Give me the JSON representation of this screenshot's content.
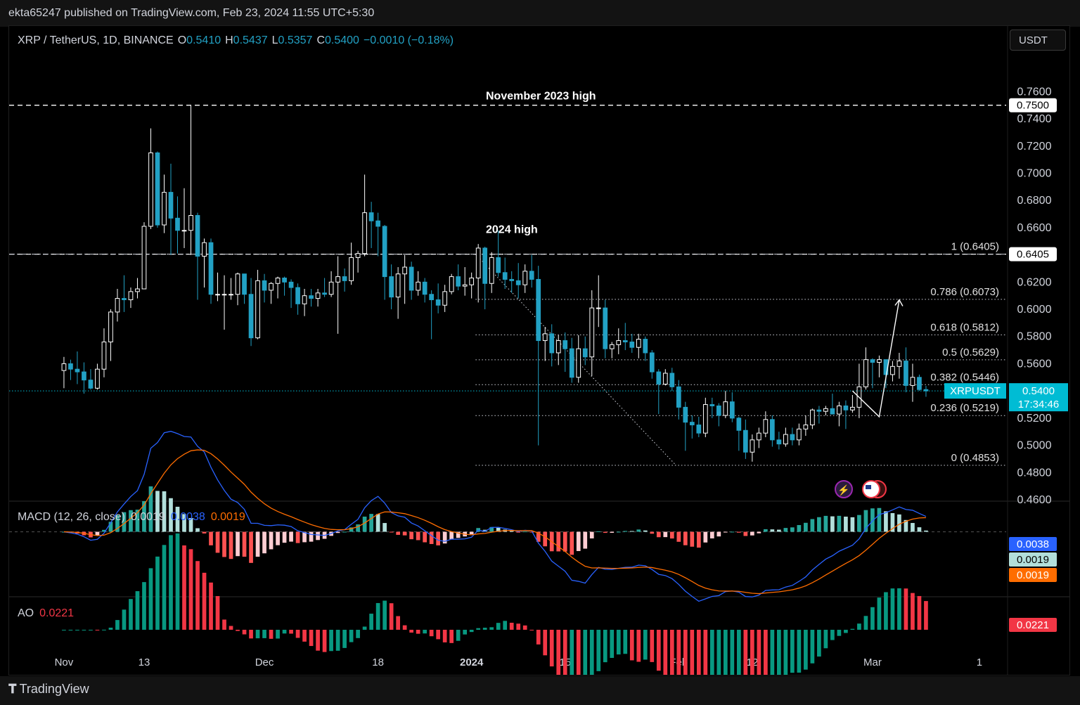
{
  "header": {
    "published": "ekta65247 published on TradingView.com, Feb 23, 2024 11:55 UTC+5:30"
  },
  "toolbar": {
    "currency": "USDT"
  },
  "branding": {
    "name": "TradingView"
  },
  "legend": {
    "symbol": "XRP / TetherUS, 1D, BINANCE",
    "o_label": "O",
    "o": "0.5410",
    "h_label": "H",
    "h": "0.5437",
    "l_label": "L",
    "l": "0.5357",
    "c_label": "C",
    "c": "0.5400",
    "change": "−0.0010 (−0.18%)"
  },
  "colors": {
    "up": "#ffffff",
    "down": "#22a1c4",
    "background": "#000000",
    "macd_line": "#2962ff",
    "signal_line": "#ff6d00",
    "hist_pos_strong": "#26a69a",
    "hist_pos_weak": "#b2dfdb",
    "hist_neg_strong": "#ff5252",
    "hist_neg_weak": "#ffcdd2",
    "ao_up": "#089981",
    "ao_down": "#f23645",
    "price_badge": "#00bcd4"
  },
  "chart_data": {
    "type": "candlestick",
    "symbol": "XRPUSDT",
    "ylim": [
      0.46,
      0.77
    ],
    "y_ticks": [
      "0.7600",
      "0.7400",
      "0.7200",
      "0.7000",
      "0.6800",
      "0.6600",
      "0.6400",
      "0.6200",
      "0.6000",
      "0.5800",
      "0.5600",
      "0.5400",
      "0.5200",
      "0.5000",
      "0.4800",
      "0.4600"
    ],
    "y_tick_values": [
      0.76,
      0.74,
      0.72,
      0.7,
      0.68,
      0.66,
      0.64,
      0.62,
      0.6,
      0.58,
      0.56,
      0.54,
      0.52,
      0.5,
      0.48,
      0.46
    ],
    "x_ticks": [
      {
        "label": "Nov",
        "day": 0
      },
      {
        "label": "13",
        "day": 12
      },
      {
        "label": "Dec",
        "day": 30
      },
      {
        "label": "18",
        "day": 47
      },
      {
        "label": "2024",
        "day": 61
      },
      {
        "label": "15",
        "day": 75
      },
      {
        "label": "Feb",
        "day": 92
      },
      {
        "label": "12",
        "day": 103
      },
      {
        "label": "Mar",
        "day": 121
      },
      {
        "label": "1",
        "day": 137
      }
    ],
    "x_range_days": [
      -8.2,
      141
    ],
    "ohlc": [
      [
        0.555,
        0.565,
        0.542,
        0.56
      ],
      [
        0.56,
        0.563,
        0.548,
        0.556
      ],
      [
        0.556,
        0.569,
        0.545,
        0.554
      ],
      [
        0.554,
        0.561,
        0.538,
        0.548
      ],
      [
        0.548,
        0.556,
        0.541,
        0.542
      ],
      [
        0.542,
        0.56,
        0.541,
        0.556
      ],
      [
        0.556,
        0.586,
        0.55,
        0.576
      ],
      [
        0.576,
        0.6,
        0.562,
        0.598
      ],
      [
        0.598,
        0.615,
        0.591,
        0.608
      ],
      [
        0.608,
        0.625,
        0.598,
        0.607
      ],
      [
        0.607,
        0.616,
        0.601,
        0.613
      ],
      [
        0.613,
        0.623,
        0.608,
        0.615
      ],
      [
        0.615,
        0.664,
        0.615,
        0.661
      ],
      [
        0.661,
        0.733,
        0.659,
        0.715
      ],
      [
        0.715,
        0.716,
        0.66,
        0.662
      ],
      [
        0.662,
        0.699,
        0.656,
        0.686
      ],
      [
        0.686,
        0.707,
        0.64,
        0.667
      ],
      [
        0.667,
        0.683,
        0.641,
        0.658
      ],
      [
        0.658,
        0.689,
        0.645,
        0.658
      ],
      [
        0.658,
        0.75,
        0.64,
        0.669
      ],
      [
        0.669,
        0.671,
        0.607,
        0.639
      ],
      [
        0.639,
        0.652,
        0.616,
        0.649
      ],
      [
        0.649,
        0.652,
        0.604,
        0.611
      ],
      [
        0.611,
        0.627,
        0.606,
        0.611
      ],
      [
        0.611,
        0.625,
        0.585,
        0.611
      ],
      [
        0.611,
        0.623,
        0.607,
        0.611
      ],
      [
        0.611,
        0.627,
        0.603,
        0.626
      ],
      [
        0.626,
        0.626,
        0.604,
        0.611
      ],
      [
        0.611,
        0.623,
        0.573,
        0.579
      ],
      [
        0.579,
        0.629,
        0.578,
        0.621
      ],
      [
        0.621,
        0.626,
        0.605,
        0.614
      ],
      [
        0.614,
        0.62,
        0.604,
        0.619
      ],
      [
        0.619,
        0.624,
        0.608,
        0.623
      ],
      [
        0.623,
        0.624,
        0.61,
        0.62
      ],
      [
        0.62,
        0.622,
        0.601,
        0.616
      ],
      [
        0.616,
        0.619,
        0.596,
        0.604
      ],
      [
        0.604,
        0.615,
        0.595,
        0.61
      ],
      [
        0.61,
        0.615,
        0.602,
        0.608
      ],
      [
        0.608,
        0.615,
        0.602,
        0.612
      ],
      [
        0.612,
        0.623,
        0.609,
        0.611
      ],
      [
        0.611,
        0.628,
        0.609,
        0.62
      ],
      [
        0.62,
        0.639,
        0.582,
        0.624
      ],
      [
        0.624,
        0.63,
        0.613,
        0.621
      ],
      [
        0.621,
        0.649,
        0.618,
        0.638
      ],
      [
        0.638,
        0.643,
        0.627,
        0.641
      ],
      [
        0.641,
        0.699,
        0.639,
        0.671
      ],
      [
        0.671,
        0.679,
        0.645,
        0.665
      ],
      [
        0.665,
        0.671,
        0.639,
        0.661
      ],
      [
        0.661,
        0.662,
        0.607,
        0.624
      ],
      [
        0.624,
        0.633,
        0.6,
        0.609
      ],
      [
        0.609,
        0.631,
        0.593,
        0.626
      ],
      [
        0.626,
        0.64,
        0.604,
        0.631
      ],
      [
        0.631,
        0.635,
        0.607,
        0.614
      ],
      [
        0.614,
        0.628,
        0.61,
        0.62
      ],
      [
        0.62,
        0.623,
        0.605,
        0.611
      ],
      [
        0.611,
        0.614,
        0.578,
        0.607
      ],
      [
        0.607,
        0.619,
        0.597,
        0.603
      ],
      [
        0.603,
        0.618,
        0.598,
        0.613
      ],
      [
        0.613,
        0.626,
        0.611,
        0.624
      ],
      [
        0.624,
        0.633,
        0.614,
        0.617
      ],
      [
        0.617,
        0.631,
        0.61,
        0.618
      ],
      [
        0.618,
        0.627,
        0.608,
        0.623
      ],
      [
        0.623,
        0.648,
        0.605,
        0.645
      ],
      [
        0.645,
        0.646,
        0.6,
        0.619
      ],
      [
        0.619,
        0.642,
        0.612,
        0.638
      ],
      [
        0.638,
        0.658,
        0.624,
        0.627
      ],
      [
        0.627,
        0.638,
        0.615,
        0.622
      ],
      [
        0.622,
        0.628,
        0.612,
        0.621
      ],
      [
        0.621,
        0.634,
        0.608,
        0.618
      ],
      [
        0.618,
        0.633,
        0.612,
        0.628
      ],
      [
        0.628,
        0.64,
        0.616,
        0.622
      ],
      [
        0.622,
        0.632,
        0.5,
        0.577
      ],
      [
        0.577,
        0.587,
        0.562,
        0.582
      ],
      [
        0.582,
        0.589,
        0.558,
        0.568
      ],
      [
        0.568,
        0.581,
        0.559,
        0.577
      ],
      [
        0.577,
        0.583,
        0.554,
        0.571
      ],
      [
        0.571,
        0.579,
        0.546,
        0.55
      ],
      [
        0.55,
        0.581,
        0.546,
        0.571
      ],
      [
        0.571,
        0.58,
        0.559,
        0.565
      ],
      [
        0.565,
        0.614,
        0.551,
        0.601
      ],
      [
        0.601,
        0.625,
        0.587,
        0.601
      ],
      [
        0.601,
        0.607,
        0.564,
        0.571
      ],
      [
        0.571,
        0.576,
        0.564,
        0.574
      ],
      [
        0.574,
        0.586,
        0.567,
        0.577
      ],
      [
        0.577,
        0.59,
        0.57,
        0.576
      ],
      [
        0.576,
        0.582,
        0.568,
        0.572
      ],
      [
        0.572,
        0.582,
        0.564,
        0.578
      ],
      [
        0.578,
        0.58,
        0.562,
        0.568
      ],
      [
        0.568,
        0.57,
        0.549,
        0.554
      ],
      [
        0.554,
        0.556,
        0.523,
        0.545
      ],
      [
        0.545,
        0.556,
        0.544,
        0.553
      ],
      [
        0.553,
        0.557,
        0.54,
        0.543
      ],
      [
        0.543,
        0.548,
        0.519,
        0.528
      ],
      [
        0.528,
        0.532,
        0.496,
        0.517
      ],
      [
        0.517,
        0.522,
        0.505,
        0.515
      ],
      [
        0.515,
        0.521,
        0.506,
        0.509
      ],
      [
        0.509,
        0.535,
        0.506,
        0.53
      ],
      [
        0.53,
        0.535,
        0.52,
        0.529
      ],
      [
        0.529,
        0.531,
        0.514,
        0.522
      ],
      [
        0.522,
        0.54,
        0.52,
        0.532
      ],
      [
        0.532,
        0.539,
        0.517,
        0.52
      ],
      [
        0.52,
        0.521,
        0.496,
        0.511
      ],
      [
        0.511,
        0.519,
        0.49,
        0.495
      ],
      [
        0.495,
        0.508,
        0.488,
        0.504
      ],
      [
        0.504,
        0.513,
        0.498,
        0.509
      ],
      [
        0.509,
        0.525,
        0.506,
        0.519
      ],
      [
        0.519,
        0.522,
        0.499,
        0.504
      ],
      [
        0.504,
        0.51,
        0.497,
        0.501
      ],
      [
        0.501,
        0.513,
        0.499,
        0.508
      ],
      [
        0.508,
        0.513,
        0.5,
        0.504
      ],
      [
        0.504,
        0.516,
        0.5,
        0.512
      ],
      [
        0.512,
        0.522,
        0.507,
        0.515
      ],
      [
        0.515,
        0.527,
        0.512,
        0.526
      ],
      [
        0.526,
        0.529,
        0.516,
        0.525
      ],
      [
        0.525,
        0.529,
        0.522,
        0.527
      ],
      [
        0.527,
        0.538,
        0.523,
        0.523
      ],
      [
        0.523,
        0.532,
        0.514,
        0.529
      ],
      [
        0.529,
        0.533,
        0.512,
        0.526
      ],
      [
        0.526,
        0.537,
        0.524,
        0.528
      ],
      [
        0.528,
        0.56,
        0.52,
        0.543
      ],
      [
        0.543,
        0.572,
        0.541,
        0.563
      ],
      [
        0.563,
        0.564,
        0.542,
        0.561
      ],
      [
        0.561,
        0.566,
        0.55,
        0.563
      ],
      [
        0.563,
        0.563,
        0.542,
        0.552
      ],
      [
        0.552,
        0.562,
        0.547,
        0.558
      ],
      [
        0.558,
        0.568,
        0.549,
        0.562
      ],
      [
        0.562,
        0.572,
        0.539,
        0.544
      ],
      [
        0.544,
        0.56,
        0.532,
        0.55
      ],
      [
        0.55,
        0.552,
        0.54,
        0.541
      ],
      [
        0.541,
        0.5437,
        0.5357,
        0.54
      ]
    ],
    "hlines": [
      {
        "label": "November 2023 high",
        "value": 0.75,
        "badge": "0.7500"
      },
      {
        "label": "2024 high",
        "value": 0.6405,
        "badge": "0.6405"
      }
    ],
    "fibonacci": [
      {
        "label": "1 (0.6405)",
        "value": 0.6405
      },
      {
        "label": "0.786 (0.6073)",
        "value": 0.6073
      },
      {
        "label": "0.618 (0.5812)",
        "value": 0.5812
      },
      {
        "label": "0.5 (0.5629)",
        "value": 0.5629
      },
      {
        "label": "0.382 (0.5446)",
        "value": 0.5446
      },
      {
        "label": "0.236 (0.5219)",
        "value": 0.5219
      },
      {
        "label": "0 (0.4853)",
        "value": 0.4853
      }
    ],
    "current_price": {
      "label": "XRPUSDT",
      "value": 0.54,
      "price": "0.5400",
      "countdown": "17:34:46"
    },
    "projection": [
      [
        118,
        0.54
      ],
      [
        122,
        0.521
      ],
      [
        125,
        0.607
      ]
    ],
    "macd": {
      "title": "MACD (12, 26, close)",
      "histogram": "0.0019",
      "macd": "0.0038",
      "signal": "0.0019",
      "badges": [
        "0.0038",
        "0.0019",
        "0.0019"
      ],
      "ylim": [
        -0.019,
        0.0085
      ]
    },
    "ao": {
      "title": "AO",
      "value": "0.0221",
      "badge": "0.0221",
      "ylim": [
        -0.011,
        0.023
      ]
    }
  }
}
